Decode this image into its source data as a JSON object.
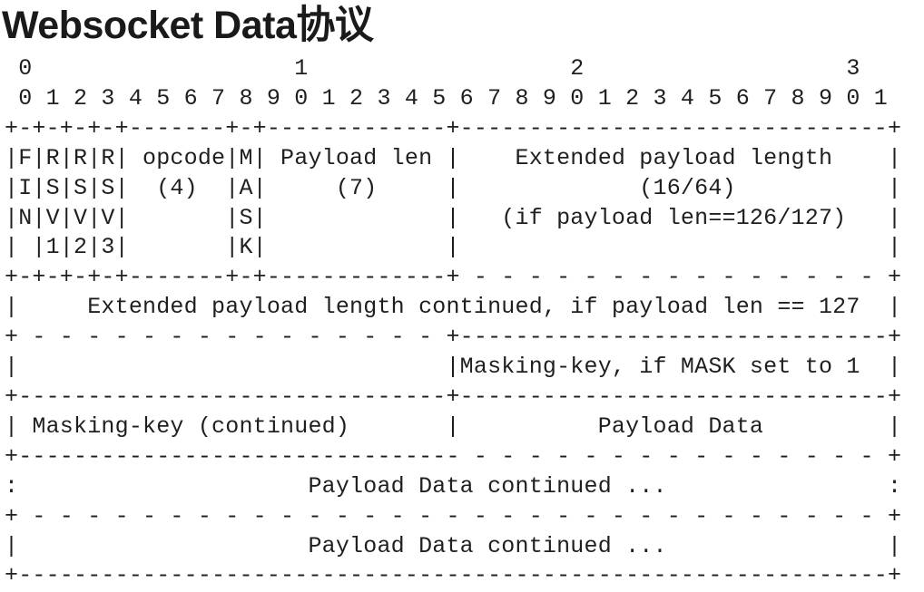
{
  "title": "Websocket Data协议",
  "colors": {
    "bg": "#ffffff",
    "title_text": "#1a1a1a",
    "diagram_text": "#1f1f1f"
  },
  "diagram": {
    "lines": [
      " 0                   1                   2                   3",
      " 0 1 2 3 4 5 6 7 8 9 0 1 2 3 4 5 6 7 8 9 0 1 2 3 4 5 6 7 8 9 0 1",
      "+-+-+-+-+-------+-+-------------+-------------------------------+",
      "|F|R|R|R| opcode|M| Payload len |    Extended payload length    |",
      "|I|S|S|S|  (4)  |A|     (7)     |             (16/64)           |",
      "|N|V|V|V|       |S|             |   (if payload len==126/127)   |",
      "| |1|2|3|       |K|             |                               |",
      "+-+-+-+-+-------+-+-------------+ - - - - - - - - - - - - - - - +",
      "|     Extended payload length continued, if payload len == 127  |",
      "+ - - - - - - - - - - - - - - - +-------------------------------+",
      "|                               |Masking-key, if MASK set to 1  |",
      "+-------------------------------+-------------------------------+",
      "| Masking-key (continued)       |          Payload Data         |",
      "+-------------------------------- - - - - - - - - - - - - - - - +",
      ":                     Payload Data continued ...                :",
      "+ - - - - - - - - - - - - - - - - - - - - - - - - - - - - - - - +",
      "|                     Payload Data continued ...                |",
      "+---------------------------------------------------------------+"
    ]
  }
}
